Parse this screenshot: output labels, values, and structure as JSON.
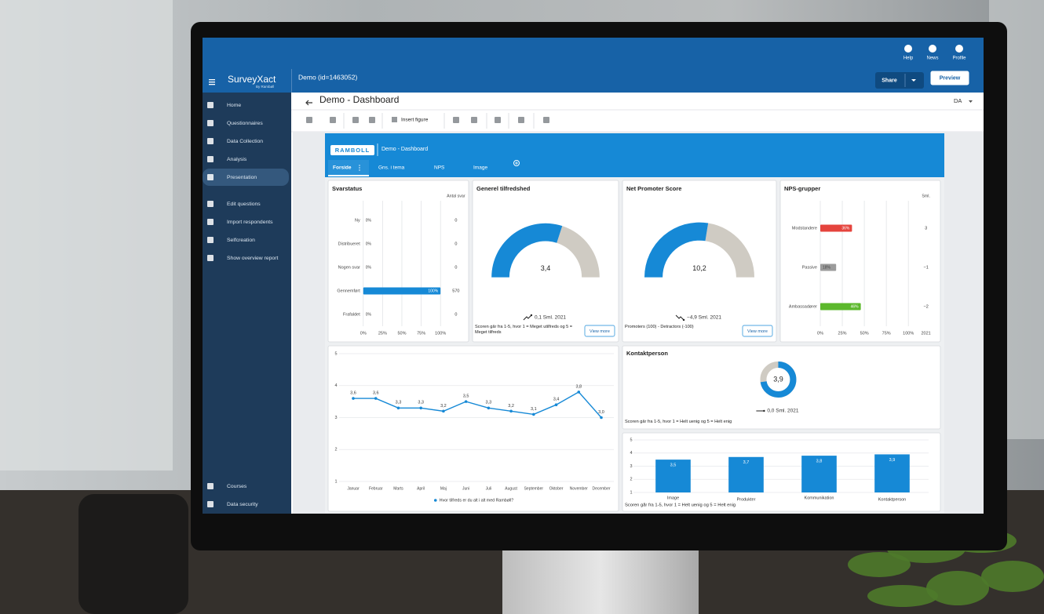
{
  "app": {
    "brand": "SurveyXact",
    "brand_sub": "By Rambøll",
    "document": "Demo (id=1463052)",
    "top_actions": [
      "Help",
      "News",
      "Profile"
    ],
    "share": "Share",
    "preview": "Preview",
    "page_title": "Demo - Dashboard",
    "language": "DA",
    "insert_figure": "Insert figure"
  },
  "nav": {
    "items": [
      "Home",
      "Questionnaires",
      "Data Collection",
      "Analysis",
      "Presentation",
      "Edit questions",
      "Import respondents",
      "Selfcreation",
      "Show overview report"
    ],
    "bottom": [
      "Courses",
      "Data security"
    ]
  },
  "dashboard": {
    "logo": "RAMBOLL",
    "title": "Demo - Dashboard",
    "tabs": [
      "Forside",
      "Gns. i tema",
      "NPS",
      "Image"
    ]
  },
  "chart_data": [
    {
      "type": "hbar",
      "title": "Svarstatus",
      "side_header": "Antal svar",
      "categories": [
        "Ny",
        "Distribueret",
        "Nogen svar",
        "Gennemført",
        "Frafaldet"
      ],
      "values": [
        0,
        0,
        0,
        100,
        0
      ],
      "value_labels": [
        "0%",
        "0%",
        "0%",
        "100%",
        "0%"
      ],
      "side_values": [
        0,
        0,
        0,
        570,
        0
      ],
      "color": "#1689d6",
      "xlim": [
        0,
        100
      ],
      "xticks": [
        {
          "value": 0,
          "label": "0%"
        },
        {
          "value": 25,
          "label": "25%"
        },
        {
          "value": 50,
          "label": "50%"
        },
        {
          "value": 75,
          "label": "75%"
        },
        {
          "value": 100,
          "label": "100%"
        }
      ],
      "grid": true
    },
    {
      "type": "gauge",
      "title": "Generel tilfredshed",
      "value": 3.4,
      "value_label": "3,4",
      "range": [
        1,
        5
      ],
      "color": "#1689d6",
      "track_color": "#cfcbc3",
      "trend": "0,1 Sml. 2021",
      "trend_icon": "up",
      "note": "Scoren går fra 1-5, hvor 1 = Meget utilfreds og 5 = Meget tilfreds",
      "button": "View more"
    },
    {
      "type": "gauge",
      "title": "Net Promoter Score",
      "value": 10.2,
      "value_label": "10,2",
      "range": [
        -100,
        100
      ],
      "color": "#1689d6",
      "track_color": "#cfcbc3",
      "trend": "−4,9 Sml. 2021",
      "trend_icon": "down",
      "note": "Promoters (100) - Detractors (-100)",
      "button": "View more"
    },
    {
      "type": "hbar",
      "title": "NPS-grupper",
      "side_header": "Sml.",
      "side_footer": "2021",
      "categories": [
        "Modstandere",
        "Passive",
        "Ambassadører"
      ],
      "values": [
        36,
        18,
        46
      ],
      "value_labels": [
        "36%",
        "18%",
        "46%"
      ],
      "colors": [
        "#e5443d",
        "#9b9b9b",
        "#5cb82c"
      ],
      "side_values": [
        "3",
        "−1",
        "−2"
      ],
      "xlim": [
        0,
        100
      ],
      "xticks": [
        {
          "value": 0,
          "label": "0%"
        },
        {
          "value": 25,
          "label": "25%"
        },
        {
          "value": 50,
          "label": "50%"
        },
        {
          "value": 75,
          "label": "75%"
        },
        {
          "value": 100,
          "label": "100%"
        }
      ],
      "grid": true
    },
    {
      "type": "line",
      "categories": [
        "Januar",
        "Februar",
        "Marts",
        "April",
        "Maj",
        "Juni",
        "Juli",
        "August",
        "September",
        "Oktober",
        "November",
        "December"
      ],
      "series": [
        {
          "name": "Hvor tilfreds er du alt i alt med Rambøll?",
          "color": "#1689d6",
          "values": [
            3.6,
            3.6,
            3.3,
            3.3,
            3.2,
            3.5,
            3.3,
            3.2,
            3.1,
            3.4,
            3.8,
            3.0
          ],
          "value_labels": [
            "3,6",
            "3,6",
            "3,3",
            "3,3",
            "3,2",
            "3,5",
            "3,3",
            "3,2",
            "3,1",
            "3,4",
            "3,8",
            "3,0"
          ]
        }
      ],
      "ylim": [
        1,
        5
      ],
      "yticks": [
        1,
        2,
        3,
        4,
        5
      ],
      "grid": true
    },
    {
      "type": "donut",
      "title": "Kontaktperson",
      "value": 3.9,
      "value_label": "3,9",
      "range": [
        1,
        5
      ],
      "color": "#1689d6",
      "track_color": "#cfcbc3",
      "trend": "0,0 Sml. 2021",
      "trend_icon": "flat",
      "note": "Scoren går fra 1-5, hvor 1 = Helt uenig og 5 = Helt enig"
    },
    {
      "type": "bar",
      "categories": [
        "Image",
        "Produkter",
        "Kommunikation",
        "Kontaktperson"
      ],
      "values": [
        3.5,
        3.7,
        3.8,
        3.9
      ],
      "value_labels": [
        "3,5",
        "3,7",
        "3,8",
        "3,9"
      ],
      "color": "#1689d6",
      "ylim": [
        1,
        5
      ],
      "yticks": [
        1,
        2,
        3,
        4,
        5
      ],
      "grid": true,
      "note": "Scoren går fra 1-5, hvor 1 = Helt uenig og 5 = Helt enig"
    }
  ]
}
